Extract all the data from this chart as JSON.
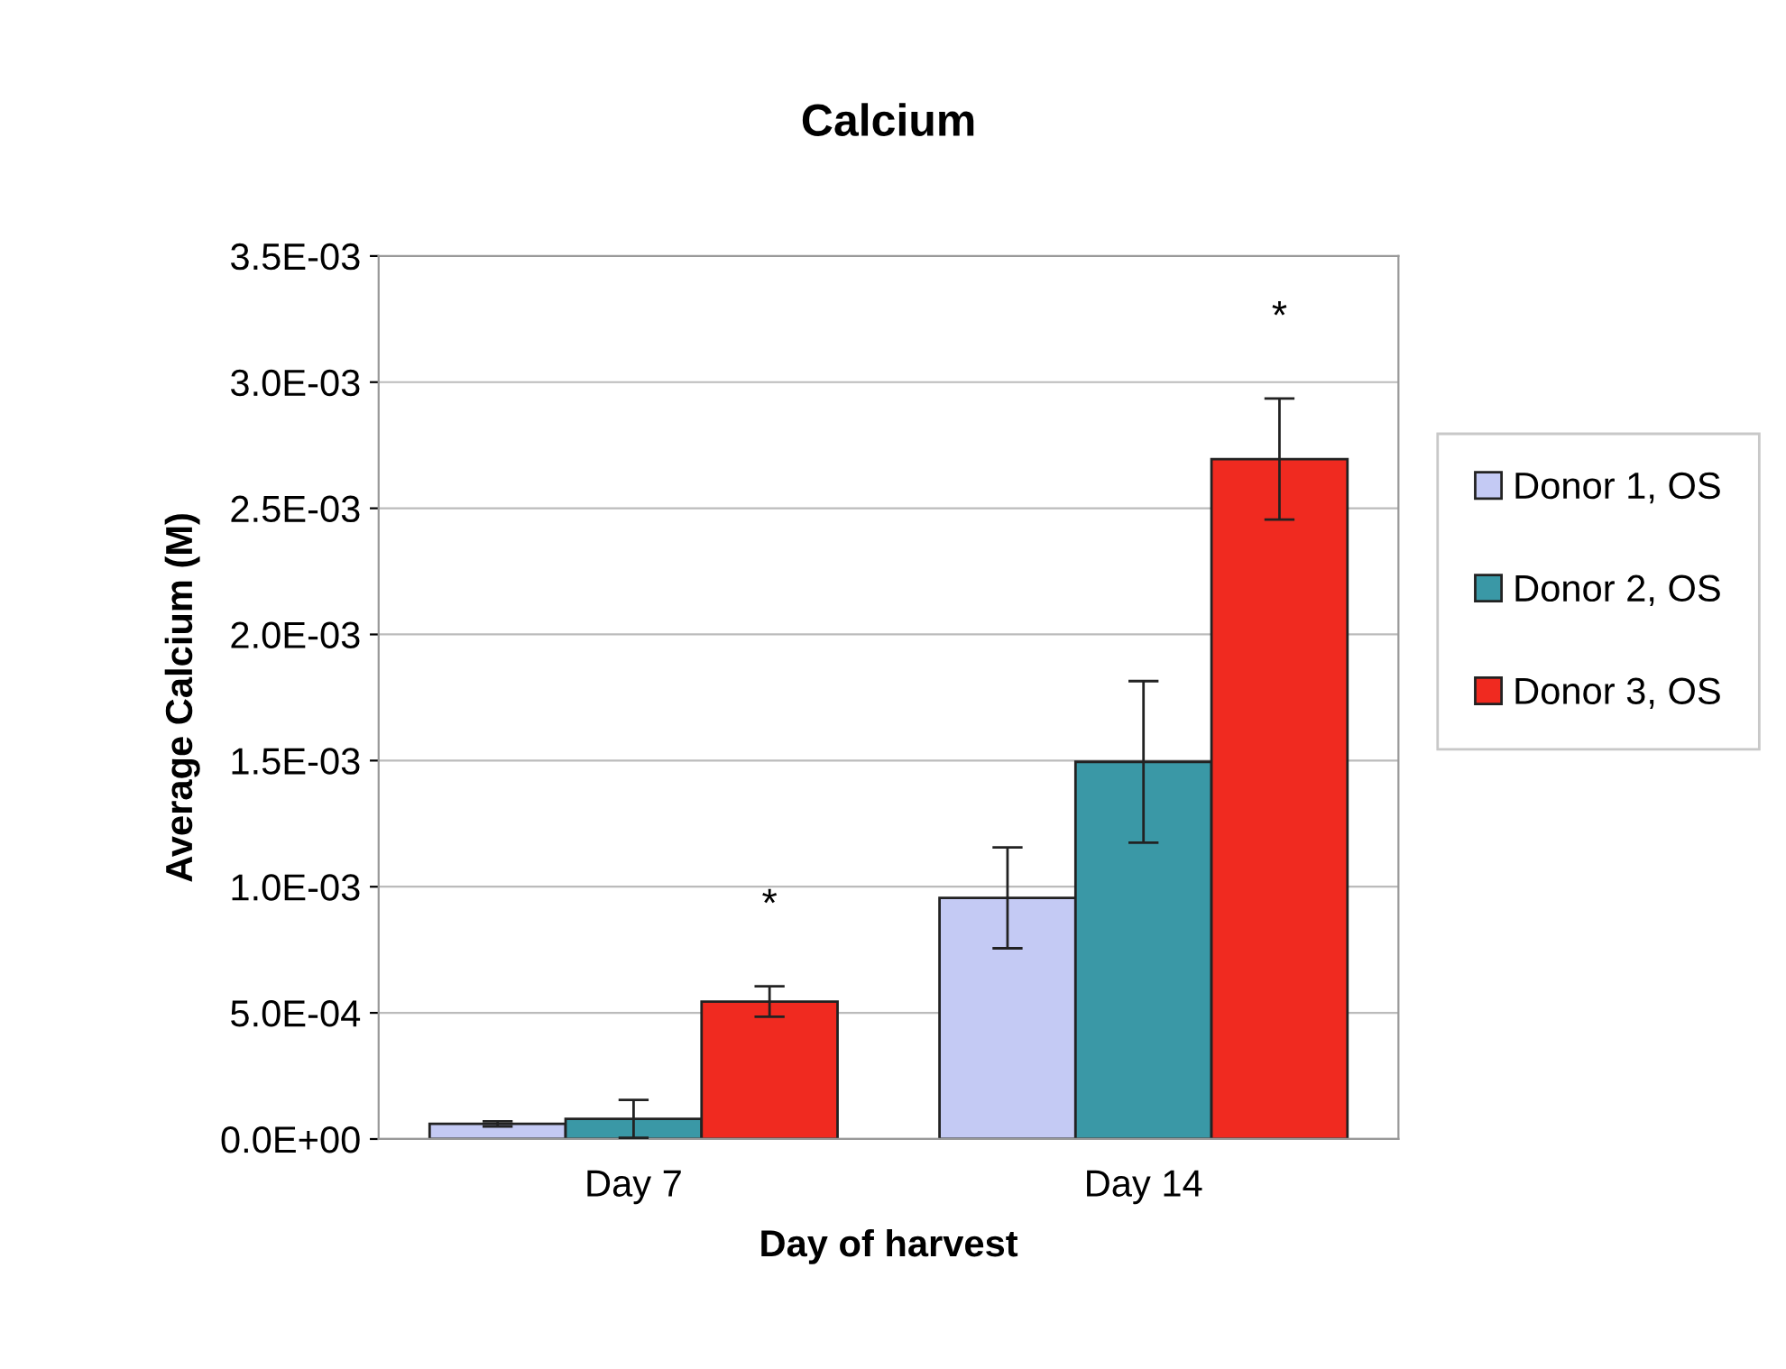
{
  "chart_data": {
    "type": "bar",
    "title": "Calcium",
    "xlabel": "Day of harvest",
    "ylabel": "Average Calcium (M)",
    "categories": [
      "Day 7",
      "Day 14"
    ],
    "series": [
      {
        "name": "Donor 1, OS",
        "color": "#c4caf4",
        "values": [
          6e-05,
          0.000956
        ],
        "errors": [
          1e-05,
          0.0002
        ]
      },
      {
        "name": "Donor 2, OS",
        "color": "#3a98a6",
        "values": [
          8e-05,
          0.001495
        ],
        "errors": [
          7.5e-05,
          0.00032
        ]
      },
      {
        "name": "Donor 3, OS",
        "color": "#f02a20",
        "values": [
          0.000545,
          0.002695
        ],
        "errors": [
          6e-05,
          0.00024
        ]
      }
    ],
    "ylim": [
      0,
      0.0035
    ],
    "yticks": [
      {
        "value": 0,
        "label": "0.0E+00"
      },
      {
        "value": 0.0005,
        "label": "5.0E-04"
      },
      {
        "value": 0.001,
        "label": "1.0E-03"
      },
      {
        "value": 0.0015,
        "label": "1.5E-03"
      },
      {
        "value": 0.002,
        "label": "2.0E-03"
      },
      {
        "value": 0.0025,
        "label": "2.5E-03"
      },
      {
        "value": 0.003,
        "label": "3.0E-03"
      },
      {
        "value": 0.0035,
        "label": "3.5E-03"
      }
    ],
    "grid": "y",
    "legend": "right",
    "annotations": [
      "*",
      "*"
    ]
  }
}
